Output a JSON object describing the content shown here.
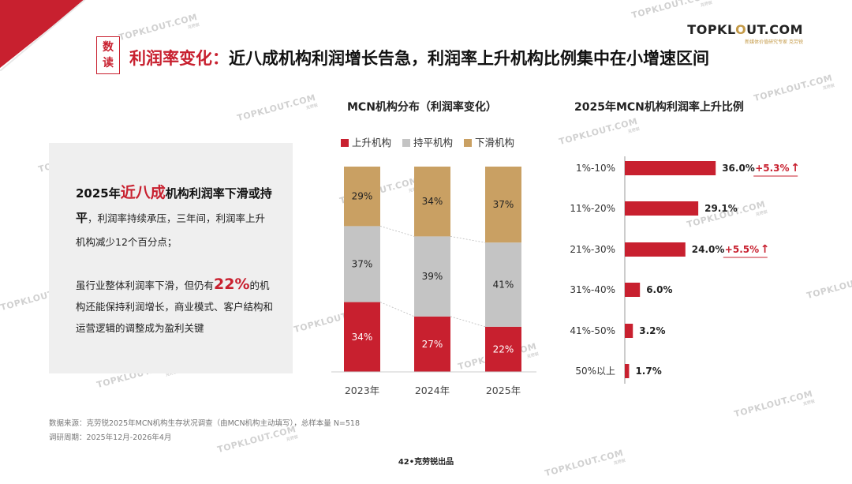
{
  "header": {
    "badge_chars": [
      "数",
      "读"
    ],
    "title_accent": "利润率变化：",
    "title_main": "近八成机构利润增长告急，利润率上升机构比例集中在小增速区间"
  },
  "logo": {
    "main_a": "TOPKL",
    "main_o": "O",
    "main_b": "UT.COM",
    "sub": "新媒体价值研究专家  克劳锐"
  },
  "watermark": {
    "text": "TOPKLOUT.COM",
    "sub": "克劳锐"
  },
  "panel": {
    "p1_year": "2025年",
    "p1_big": "近八成",
    "p1_bold": "机构利润率下滑或持平",
    "p1_rest": "，利润率持续承压，三年间，利润率上升机构减少12个百分点；",
    "p2_a": "虽行业整体利润率下滑，但仍有",
    "p2_big": "22%",
    "p2_b": "的机构还能保持利润增长，商业模式、客户结构和运营逻辑的调整成为盈利关键"
  },
  "colors": {
    "red": "#c8202f",
    "gray": "#c4c4c4",
    "gold": "#c9a063"
  },
  "chart_data": [
    {
      "type": "bar",
      "stacked": true,
      "title": "MCN机构分布（利润率变化）",
      "categories": [
        "2023年",
        "2024年",
        "2025年"
      ],
      "series": [
        {
          "name": "上升机构",
          "values": [
            34,
            27,
            22
          ],
          "color": "#c8202f"
        },
        {
          "name": "持平机构",
          "values": [
            37,
            39,
            41
          ],
          "color": "#c4c4c4"
        },
        {
          "name": "下滑机构",
          "values": [
            29,
            34,
            37
          ],
          "color": "#c9a063"
        }
      ],
      "value_suffix": "%",
      "ylim": [
        0,
        100
      ],
      "legend_position": "top"
    },
    {
      "type": "bar",
      "orientation": "horizontal",
      "title": "2025年MCN机构利润率上升比例",
      "categories": [
        "1%-10%",
        "11%-20%",
        "21%-30%",
        "31%-40%",
        "41%-50%",
        "50%以上"
      ],
      "values": [
        36.0,
        29.1,
        24.0,
        6.0,
        3.2,
        1.7
      ],
      "labels": [
        "36.0%",
        "29.1%",
        "24.0%",
        "6.0%",
        "3.2%",
        "1.7%"
      ],
      "annotations": [
        {
          "category": "1%-10%",
          "text": "+5.3%",
          "arrow": "↑"
        },
        {
          "category": "21%-30%",
          "text": "+5.5%",
          "arrow": "↑"
        }
      ],
      "xlim": [
        0,
        40
      ],
      "color": "#c8202f"
    }
  ],
  "footer": {
    "source": "数据来源：克劳锐2025年MCN机构生存状况调查（由MCN机构主动填写），总样本量 N=518",
    "period": "调研周期：2025年12月-2026年4月",
    "page": "42•克劳锐出品"
  }
}
